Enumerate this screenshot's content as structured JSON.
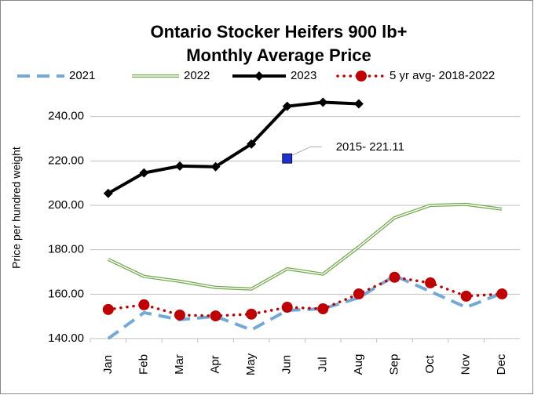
{
  "chart_data": {
    "type": "line",
    "title": "Ontario Stocker Heifers 900 lb+",
    "subtitle": "Monthly Average Price",
    "y_label": "Price per hundred weight",
    "categories": [
      "Jan",
      "Feb",
      "Mar",
      "Apr",
      "May",
      "Jun",
      "Jul",
      "Aug",
      "Sep",
      "Oct",
      "Nov",
      "Dec"
    ],
    "series": [
      {
        "name": "2021",
        "color": "#72a9d8",
        "dash": "dashed",
        "marker": "none",
        "values": [
          140,
          151.7,
          148.5,
          150,
          143.9,
          152.7,
          153.4,
          158.4,
          168.3,
          161.2,
          154.1,
          160.4
        ]
      },
      {
        "name": "2022",
        "color": "#70a84a",
        "dash": "double",
        "marker": "none",
        "values": [
          175.7,
          168,
          165.8,
          163,
          162.3,
          171.4,
          169,
          181.3,
          194.4,
          200,
          200.4,
          198.3
        ]
      },
      {
        "name": "2023",
        "color": "#000000",
        "dash": "solid",
        "marker": "diamond",
        "values": [
          205.4,
          214.6,
          217.7,
          217.4,
          227.6,
          244.6,
          246.4,
          245.7,
          null,
          null,
          null,
          null
        ]
      },
      {
        "name": "5 yr avg- 2018-2022",
        "color": "#c00000",
        "dash": "dotted",
        "marker": "circle",
        "values": [
          153.1,
          155.2,
          150.6,
          150.2,
          151,
          154.1,
          153.4,
          160.1,
          167.6,
          165.1,
          159.1,
          160.1
        ]
      }
    ],
    "annotation": {
      "text": "2015- 221.11",
      "x": "Jun",
      "value": 221.11,
      "color": "#1f2fd0"
    },
    "ylim": [
      140,
      260
    ],
    "yticks": [
      {
        "value": 140,
        "label": "140.00"
      },
      {
        "value": 160,
        "label": "160.00"
      },
      {
        "value": 180,
        "label": "180.00"
      },
      {
        "value": 200,
        "label": "200.00"
      },
      {
        "value": 220,
        "label": "220.00"
      },
      {
        "value": 240,
        "label": "240.00"
      }
    ],
    "grid": true
  }
}
